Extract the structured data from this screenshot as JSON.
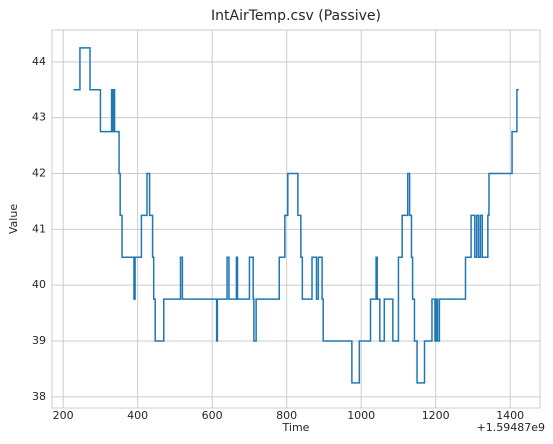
{
  "chart_data": {
    "type": "line",
    "step": "post",
    "title": "IntAirTemp.csv (Passive)",
    "x_label": "Time",
    "y_label": "Value",
    "x_offset_label": "+1.59487e9",
    "xlim": [
      170,
      1480
    ],
    "xticks": [
      200,
      400,
      600,
      800,
      1000,
      1200,
      1400
    ],
    "ylim": [
      37.8,
      44.57
    ],
    "yticks": [
      38,
      39,
      40,
      41,
      42,
      43,
      44
    ],
    "grid": true,
    "series": [
      {
        "name": "Value",
        "color": "#1f77b4",
        "x": [
          228,
          245,
          272,
          300,
          330,
          332,
          335,
          338,
          350,
          353,
          358,
          390,
          393,
          410,
          425,
          432,
          440,
          443,
          447,
          470,
          515,
          520,
          612,
          614,
          640,
          645,
          665,
          668,
          700,
          710,
          712,
          718,
          780,
          795,
          803,
          830,
          838,
          842,
          868,
          880,
          885,
          895,
          898,
          975,
          995,
          1025,
          1040,
          1043,
          1050,
          1062,
          1085,
          1100,
          1110,
          1125,
          1130,
          1135,
          1138,
          1143,
          1150,
          1170,
          1190,
          1198,
          1202,
          1205,
          1210,
          1280,
          1295,
          1305,
          1310,
          1315,
          1320,
          1325,
          1340,
          1343,
          1405,
          1418,
          1423
        ],
        "values": [
          43.5,
          44.25,
          43.5,
          42.75,
          43.5,
          42.75,
          43.5,
          42.75,
          42,
          41.25,
          40.5,
          39.75,
          40.5,
          41.25,
          42,
          41.25,
          40.5,
          39.75,
          39,
          39.75,
          40.5,
          39.75,
          39,
          39.75,
          40.5,
          39.75,
          40.5,
          39.75,
          40.5,
          39.75,
          39,
          39.75,
          40.5,
          41.25,
          42,
          41.25,
          40.5,
          39.75,
          40.5,
          39.75,
          40.5,
          39.75,
          39,
          38.25,
          39,
          39.75,
          40.5,
          39.75,
          39,
          39.75,
          39,
          40.5,
          41.25,
          42,
          41.25,
          40.5,
          39.75,
          39,
          38.25,
          39,
          39.75,
          39,
          39.75,
          39,
          39.75,
          40.5,
          41.25,
          40.5,
          41.25,
          40.5,
          41.25,
          40.5,
          41.25,
          42,
          42.75,
          43.5,
          43.5
        ]
      }
    ]
  }
}
